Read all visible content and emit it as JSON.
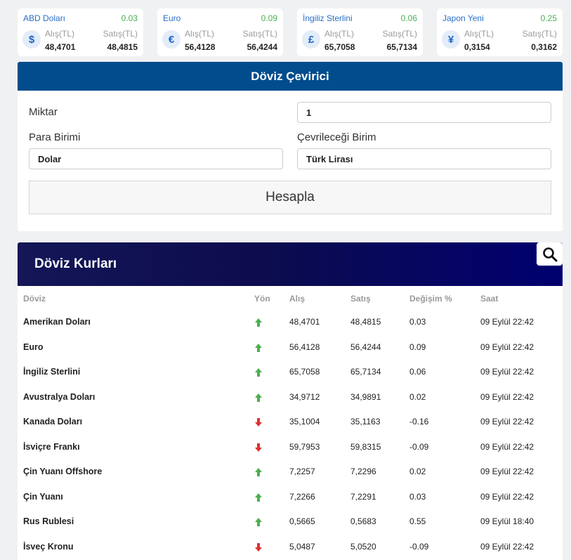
{
  "cards": [
    {
      "name": "ABD Doları",
      "change": "0.03",
      "symbol": "$",
      "buy_label": "Alış(TL)",
      "sell_label": "Satış(TL)",
      "buy": "48,4701",
      "sell": "48,4815"
    },
    {
      "name": "Euro",
      "change": "0.09",
      "symbol": "€",
      "buy_label": "Alış(TL)",
      "sell_label": "Satış(TL)",
      "buy": "56,4128",
      "sell": "56,4244"
    },
    {
      "name": "İngiliz Sterlini",
      "change": "0.06",
      "symbol": "£",
      "buy_label": "Alış(TL)",
      "sell_label": "Satış(TL)",
      "buy": "65,7058",
      "sell": "65,7134"
    },
    {
      "name": "Japon Yeni",
      "change": "0.25",
      "symbol": "¥",
      "buy_label": "Alış(TL)",
      "sell_label": "Satış(TL)",
      "buy": "0,3154",
      "sell": "0,3162"
    }
  ],
  "converter": {
    "title": "Döviz Çevirici",
    "amount_label": "Miktar",
    "amount_value": "1",
    "from_label": "Para Birimi",
    "from_value": "Dolar",
    "to_label": "Çevrileceği Birim",
    "to_value": "Türk Lirası",
    "calc_button": "Hesapla"
  },
  "rates": {
    "title": "Döviz Kurları",
    "search_icon": "search-icon",
    "columns": [
      "Döviz",
      "Yön",
      "Alış",
      "Satış",
      "Değişim %",
      "Saat"
    ],
    "up_color": "#4caf50",
    "down_color": "#e03030",
    "rows": [
      {
        "name": "Amerikan Doları",
        "dir": "up",
        "buy": "48,4701",
        "sell": "48,4815",
        "change": "0.03",
        "time": "09 Eylül 22:42"
      },
      {
        "name": "Euro",
        "dir": "up",
        "buy": "56,4128",
        "sell": "56,4244",
        "change": "0.09",
        "time": "09 Eylül 22:42"
      },
      {
        "name": "İngiliz Sterlini",
        "dir": "up",
        "buy": "65,7058",
        "sell": "65,7134",
        "change": "0.06",
        "time": "09 Eylül 22:42"
      },
      {
        "name": "Avustralya Doları",
        "dir": "up",
        "buy": "34,9712",
        "sell": "34,9891",
        "change": "0.02",
        "time": "09 Eylül 22:42"
      },
      {
        "name": "Kanada Doları",
        "dir": "down",
        "buy": "35,1004",
        "sell": "35,1163",
        "change": "-0.16",
        "time": "09 Eylül 22:42"
      },
      {
        "name": "İsviçre Frankı",
        "dir": "down",
        "buy": "59,7953",
        "sell": "59,8315",
        "change": "-0.09",
        "time": "09 Eylül 22:42"
      },
      {
        "name": "Çin Yuanı Offshore",
        "dir": "up",
        "buy": "7,2257",
        "sell": "7,2296",
        "change": "0.02",
        "time": "09 Eylül 22:42"
      },
      {
        "name": "Çin Yuanı",
        "dir": "up",
        "buy": "7,2266",
        "sell": "7,2291",
        "change": "0.03",
        "time": "09 Eylül 22:42"
      },
      {
        "name": "Rus Rublesi",
        "dir": "up",
        "buy": "0,5665",
        "sell": "0,5683",
        "change": "0.55",
        "time": "09 Eylül 18:40"
      },
      {
        "name": "İsveç Kronu",
        "dir": "down",
        "buy": "5,0487",
        "sell": "5,0520",
        "change": "-0.09",
        "time": "09 Eylül 22:42"
      }
    ]
  }
}
